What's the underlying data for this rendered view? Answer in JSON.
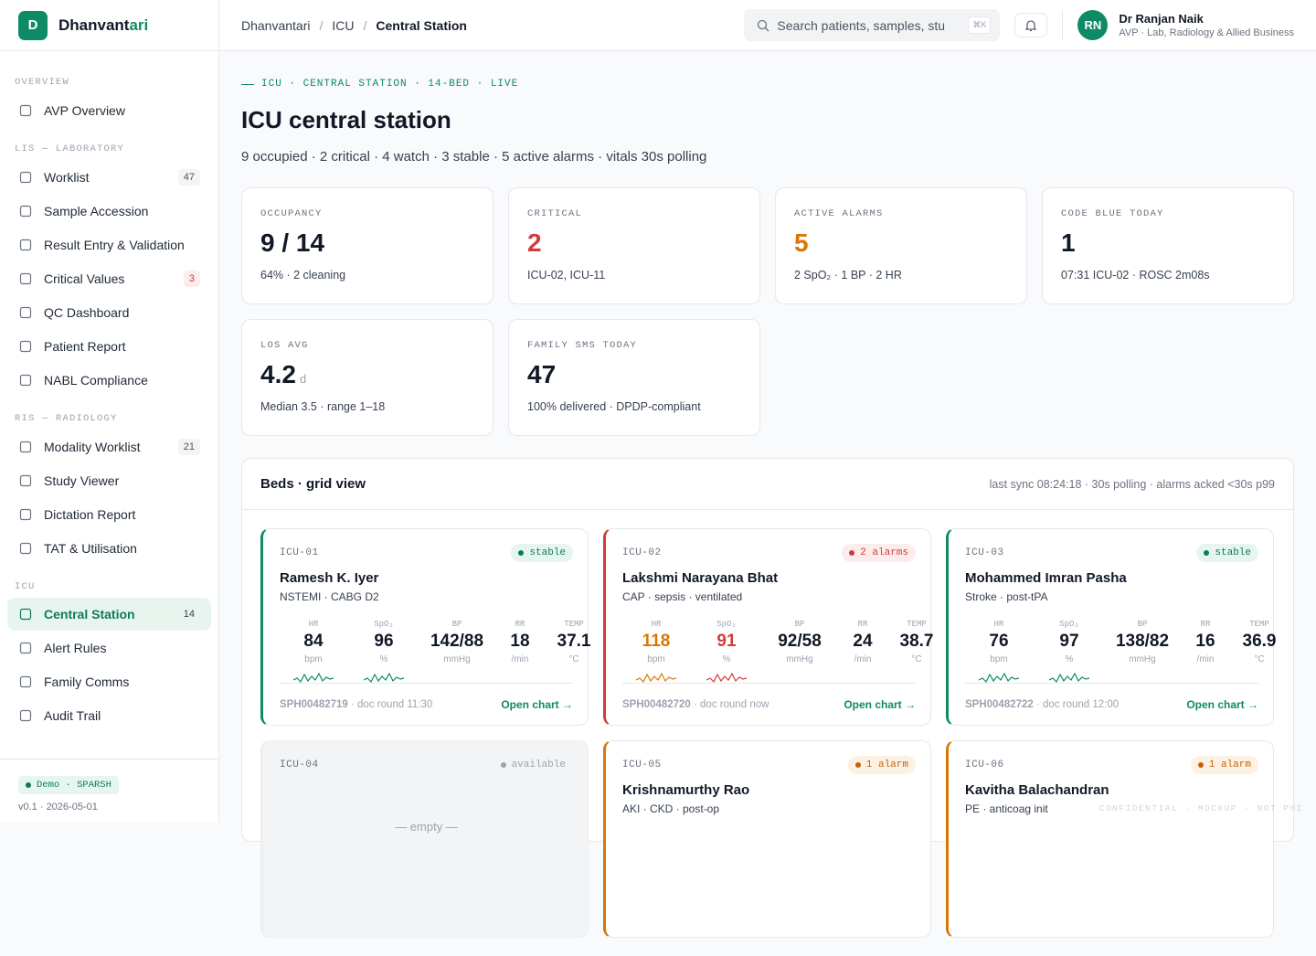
{
  "sidebar": {
    "logo_letter": "D",
    "brand": "Dhanvant",
    "brand_accent": "ari",
    "sections": [
      {
        "title": "OVERVIEW",
        "items": [
          {
            "label": "AVP Overview"
          }
        ]
      },
      {
        "title": "LIS — LABORATORY",
        "items": [
          {
            "label": "Worklist",
            "badge": "47"
          },
          {
            "label": "Sample Accession"
          },
          {
            "label": "Result Entry & Validation"
          },
          {
            "label": "Critical Values",
            "badge": "3",
            "badge_color": "#d33b3b",
            "badge_bg": "#fdecec"
          },
          {
            "label": "QC Dashboard"
          },
          {
            "label": "Patient Report"
          },
          {
            "label": "NABL Compliance"
          }
        ]
      },
      {
        "title": "RIS — RADIOLOGY",
        "items": [
          {
            "label": "Modality Worklist",
            "badge": "21"
          },
          {
            "label": "Study Viewer"
          },
          {
            "label": "Dictation Report"
          },
          {
            "label": "TAT & Utilisation"
          }
        ]
      },
      {
        "title": "ICU",
        "items": [
          {
            "label": "Central Station",
            "badge": "14",
            "active": true
          },
          {
            "label": "Alert Rules"
          },
          {
            "label": "Family Comms"
          },
          {
            "label": "Audit Trail"
          }
        ]
      }
    ],
    "demo": "Demo · SPARSH",
    "version": "v0.1 · 2026-05-01"
  },
  "topbar": {
    "breadcrumb": [
      "Dhanvantari",
      "ICU",
      "Central Station"
    ],
    "search_placeholder": "Search patients, samples, stu",
    "shortcut": "⌘K",
    "user_initials": "RN",
    "user_name": "Dr Ranjan Naik",
    "user_role": "AVP · Lab, Radiology & Allied Business"
  },
  "page": {
    "eyebrow": "ICU · CENTRAL STATION · 14-BED · LIVE",
    "title": "ICU central station",
    "subtitle": "9 occupied · 2 critical · 4 watch · 3 stable · 5 active alarms · vitals 30s polling"
  },
  "kpis": [
    {
      "label": "OCCUPANCY",
      "value": "9 / 14",
      "note": "64% · 2 cleaning",
      "value_color": "#111827"
    },
    {
      "label": "CRITICAL",
      "value": "2",
      "note": "ICU-02, ICU-11",
      "value_color": "#d33b3b"
    },
    {
      "label": "ACTIVE ALARMS",
      "value": "5",
      "note": "2 SpO₂ · 1 BP · 2 HR",
      "value_color": "#d97706"
    },
    {
      "label": "CODE BLUE TODAY",
      "value": "1",
      "note": "07:31 ICU-02 · ROSC 2m08s",
      "value_color": "#111827"
    },
    {
      "label": "LOS AVG",
      "value": "4.2",
      "unit": "d",
      "note": "Median 3.5 · range 1–18",
      "value_color": "#111827"
    },
    {
      "label": "FAMILY SMS TODAY",
      "value": "47",
      "note": "100% delivered · DPDP-compliant",
      "value_color": "#111827"
    }
  ],
  "beds": {
    "title": "Beds · grid view",
    "meta": "last sync 08:24:18 · 30s polling · alarms acked <30s p99",
    "vital_labels": [
      "HR",
      "SpO₂",
      "BP",
      "RR",
      "TEMP"
    ],
    "vital_units": [
      "bpm",
      "%",
      "mmHg",
      "/min",
      "°C"
    ],
    "cards": [
      {
        "id": "ICU-01",
        "status": "stable",
        "accent": "#0f8a66",
        "status_color": "#0f7a5a",
        "status_bg": "#e6f6ef",
        "name": "Ramesh K. Iyer",
        "dx": "NSTEMI · CABG D2",
        "vitals": [
          "84",
          "96",
          "142/88",
          "18",
          "37.1"
        ],
        "vital_colors": [
          "#111827",
          "#111827",
          "#111827",
          "#111827",
          "#111827"
        ],
        "spark_colors": [
          "#0f8a66",
          "#0f8a66"
        ],
        "mrn": "SPH00482719",
        "round": "· doc round 11:30",
        "link": "Open chart →"
      },
      {
        "id": "ICU-02",
        "status": "2 alarms",
        "accent": "#d33b3b",
        "status_color": "#d33b3b",
        "status_bg": "#fdecec",
        "name": "Lakshmi Narayana Bhat",
        "dx": "CAP · sepsis · ventilated",
        "vitals": [
          "118",
          "91",
          "92/58",
          "24",
          "38.7"
        ],
        "vital_colors": [
          "#d97706",
          "#d33b3b",
          "#111827",
          "#111827",
          "#111827"
        ],
        "spark_colors": [
          "#d97706",
          "#d33b3b"
        ],
        "mrn": "SPH00482720",
        "round": "· doc round now",
        "link": "Open chart →"
      },
      {
        "id": "ICU-03",
        "status": "stable",
        "accent": "#0f8a66",
        "status_color": "#0f7a5a",
        "status_bg": "#e6f6ef",
        "name": "Mohammed Imran Pasha",
        "dx": "Stroke · post-tPA",
        "vitals": [
          "76",
          "97",
          "138/82",
          "16",
          "36.9"
        ],
        "vital_colors": [
          "#111827",
          "#111827",
          "#111827",
          "#111827",
          "#111827"
        ],
        "spark_colors": [
          "#0f8a66",
          "#0f8a66"
        ],
        "mrn": "SPH00482722",
        "round": "· doc round 12:00",
        "link": "Open chart →"
      },
      {
        "id": "ICU-04",
        "status": "available",
        "empty": "— empty —"
      },
      {
        "id": "ICU-05",
        "status": "1 alarm",
        "accent": "#d97706",
        "status_color": "#c2620a",
        "status_bg": "#fdf1e3",
        "name": "Krishnamurthy Rao",
        "dx": "AKI · CKD · post-op"
      },
      {
        "id": "ICU-06",
        "status": "1 alarm",
        "accent": "#d97706",
        "status_color": "#c2620a",
        "status_bg": "#fdf1e3",
        "name": "Kavitha Balachandran",
        "dx": "PE · anticoag init"
      }
    ]
  },
  "watermark": "CONFIDENTIAL · MOCKUP · NOT PHI"
}
